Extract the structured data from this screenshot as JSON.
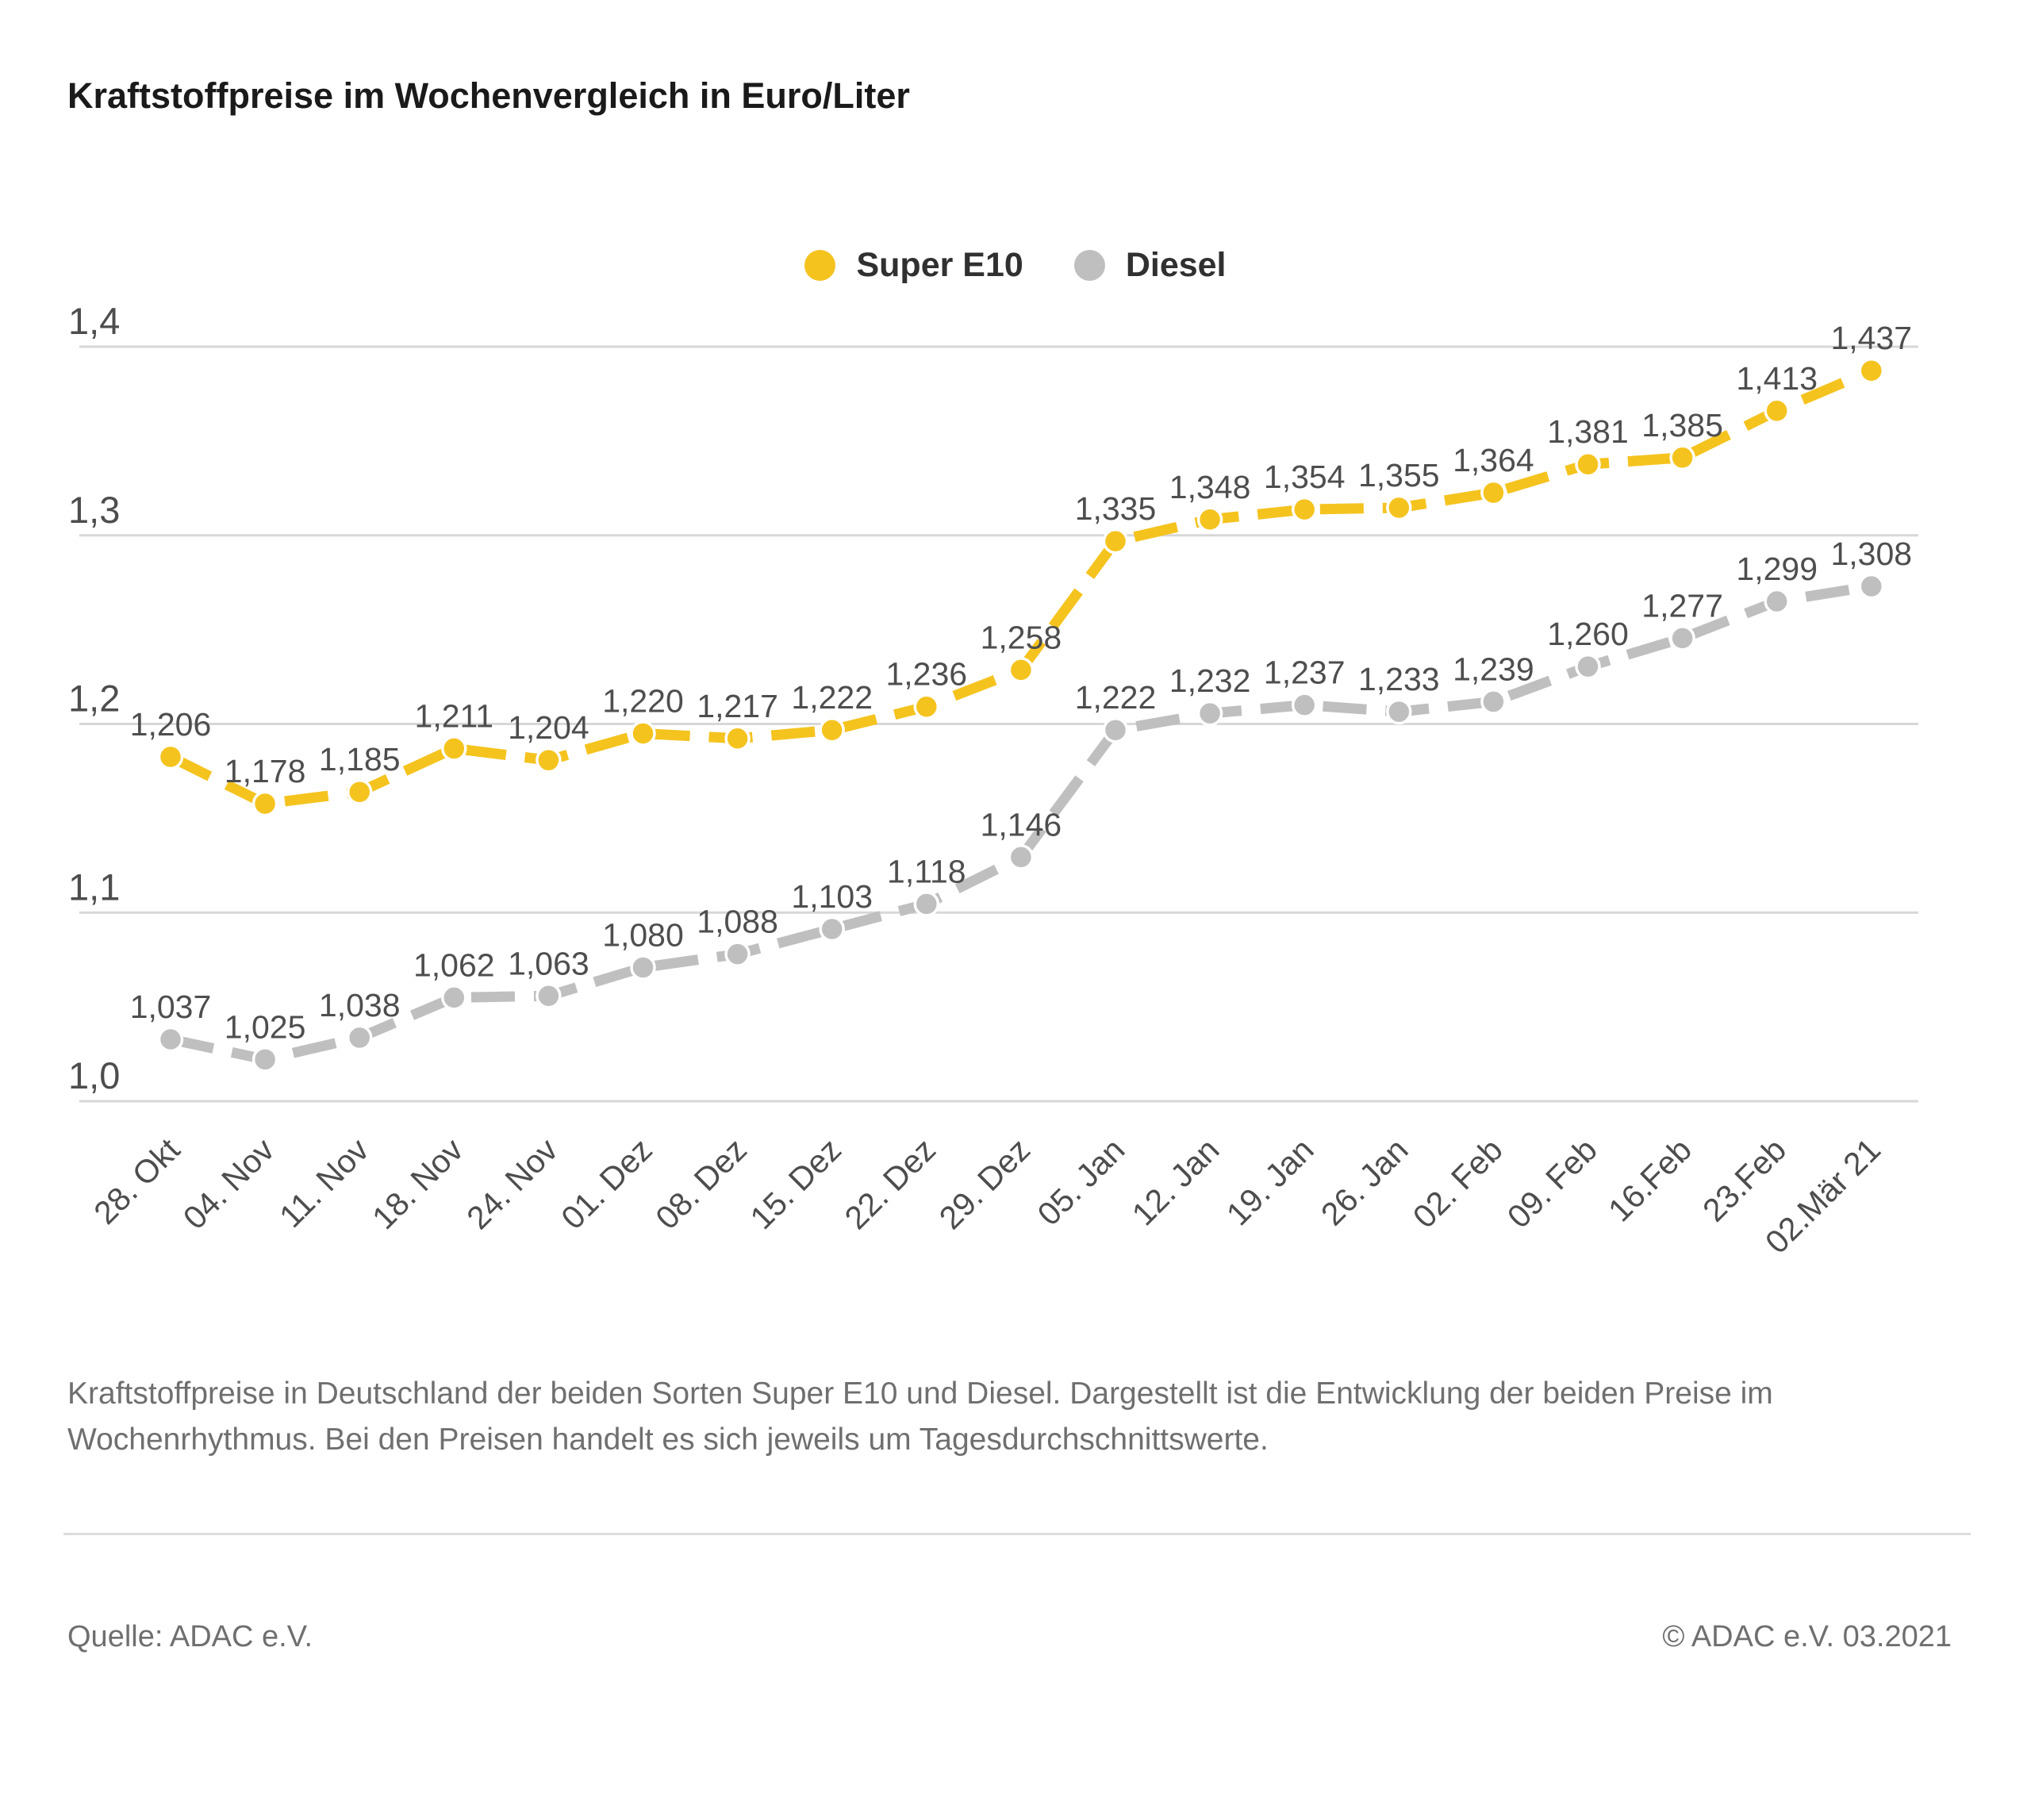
{
  "title": "Kraftstoffpreise im Wochenvergleich in Euro/Liter",
  "legend": {
    "items": [
      {
        "label": "Super E10",
        "color": "#F5C31E"
      },
      {
        "label": "Diesel",
        "color": "#BFBFBF"
      }
    ]
  },
  "chart_data": {
    "type": "line",
    "title": "Kraftstoffpreise im Wochenvergleich in Euro/Liter",
    "xlabel": "",
    "ylabel": "Euro/Liter",
    "grid": true,
    "legend_position": "top",
    "ylim": [
      1.0,
      1.45
    ],
    "categories": [
      "28. Okt",
      "04. Nov",
      "11. Nov",
      "18. Nov",
      "24. Nov",
      "01. Dez",
      "08. Dez",
      "15. Dez",
      "22. Dez",
      "29. Dez",
      "05. Jan",
      "12. Jan",
      "19. Jan",
      "26. Jan",
      "02. Feb",
      "09. Feb",
      "16.Feb",
      "23.Feb",
      "02.Mär 21"
    ],
    "y_axis": {
      "ticks": [
        {
          "label": "1,4",
          "value": 1.4
        },
        {
          "label": "1,3",
          "value": 1.3
        },
        {
          "label": "1,2",
          "value": 1.2
        },
        {
          "label": "1,1",
          "value": 1.1
        },
        {
          "label": "1,0",
          "value": 1.0
        }
      ]
    },
    "series": [
      {
        "name": "Diesel",
        "color": "#BFBFBF",
        "values": [
          1.037,
          1.025,
          1.038,
          1.062,
          1.063,
          1.08,
          1.088,
          1.103,
          1.118,
          1.146,
          1.222,
          1.232,
          1.237,
          1.233,
          1.239,
          1.26,
          1.277,
          1.299,
          1.308
        ],
        "labels": [
          "1,037",
          "1,025",
          "1,038",
          "1,062",
          "1,063",
          "1,080",
          "1,088",
          "1,103",
          "1,118",
          "1,146",
          "1,222",
          "1,232",
          "1,237",
          "1,233",
          "1,239",
          "1,260",
          "1,277",
          "1,299",
          "1,308"
        ]
      },
      {
        "name": "Super E10",
        "color": "#F5C31E",
        "values": [
          1.206,
          1.178,
          1.185,
          1.211,
          1.204,
          1.22,
          1.217,
          1.222,
          1.236,
          1.258,
          1.335,
          1.348,
          1.354,
          1.355,
          1.364,
          1.381,
          1.385,
          1.413,
          1.437
        ],
        "labels": [
          "1,206",
          "1,178",
          "1,185",
          "1,211",
          "1,204",
          "1,220",
          "1,217",
          "1,222",
          "1,236",
          "1,258",
          "1,335",
          "1,348",
          "1,354",
          "1,355",
          "1,364",
          "1,381",
          "1,385",
          "1,413",
          "1,437"
        ]
      }
    ],
    "label_color": "#4e4e4e",
    "grid_color": "#d7d7d7",
    "axis_text_color": "#4d4d4d"
  },
  "caption": "Kraftstoffpreise in Deutschland der beiden Sorten Super E10 und Diesel. Dargestellt ist die Entwicklung der beiden Preise im Wochenrhythmus. Bei den Preisen handelt es sich jeweils um Tagesdurchschnittswerte.",
  "footer": {
    "source": "Quelle: ADAC e.V.",
    "copyright": "© ADAC e.V. 03.2021"
  }
}
